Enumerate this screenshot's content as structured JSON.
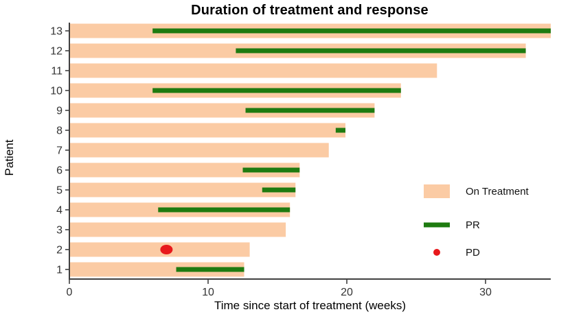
{
  "title": "Duration of treatment and response",
  "x_axis": {
    "label": "Time since start of treatment (weeks)",
    "ticks": [
      0,
      10,
      20,
      30
    ]
  },
  "y_axis": {
    "label": "Patient",
    "ticks": [
      1,
      2,
      3,
      4,
      5,
      6,
      7,
      8,
      9,
      10,
      11,
      12,
      13
    ]
  },
  "legend": {
    "position": "right-middle",
    "items": [
      {
        "key": "on_treatment",
        "label": "On Treatment",
        "marker": "bar"
      },
      {
        "key": "pr",
        "label": "PR",
        "marker": "line"
      },
      {
        "key": "pd",
        "label": "PD",
        "marker": "dot"
      }
    ]
  },
  "colors": {
    "on_treatment": "#FBCBA4",
    "pr": "#1E7B10",
    "pd": "#E8191C",
    "axis": "#404040",
    "tick_text": "#333333",
    "title": "#000000"
  },
  "chart_data": {
    "type": "bar",
    "variant": "swimmer-plot",
    "orientation": "horizontal",
    "title": "Duration of treatment and response",
    "xlabel": "Time since start of treatment (weeks)",
    "ylabel": "Patient",
    "xlim": [
      0,
      34.7
    ],
    "x_ticks": [
      0,
      10,
      20,
      30
    ],
    "grid": false,
    "patients": [
      {
        "id": 1,
        "on_treatment": [
          0,
          12.6
        ],
        "pr": [
          7.7,
          12.6
        ],
        "pd": null
      },
      {
        "id": 2,
        "on_treatment": [
          0,
          13.0
        ],
        "pr": null,
        "pd": 7.0
      },
      {
        "id": 3,
        "on_treatment": [
          0,
          15.6
        ],
        "pr": null,
        "pd": null
      },
      {
        "id": 4,
        "on_treatment": [
          0,
          15.9
        ],
        "pr": [
          6.4,
          15.9
        ],
        "pd": null
      },
      {
        "id": 5,
        "on_treatment": [
          0,
          16.3
        ],
        "pr": [
          13.9,
          16.3
        ],
        "pd": null
      },
      {
        "id": 6,
        "on_treatment": [
          0,
          16.6
        ],
        "pr": [
          12.5,
          16.6
        ],
        "pd": null
      },
      {
        "id": 7,
        "on_treatment": [
          0,
          18.7
        ],
        "pr": null,
        "pd": null
      },
      {
        "id": 8,
        "on_treatment": [
          0,
          19.9
        ],
        "pr": [
          19.2,
          19.9
        ],
        "pd": null
      },
      {
        "id": 9,
        "on_treatment": [
          0,
          22.0
        ],
        "pr": [
          12.7,
          22.0
        ],
        "pd": null
      },
      {
        "id": 10,
        "on_treatment": [
          0,
          23.9
        ],
        "pr": [
          6.0,
          23.9
        ],
        "pd": null
      },
      {
        "id": 11,
        "on_treatment": [
          0,
          26.5
        ],
        "pr": null,
        "pd": null
      },
      {
        "id": 12,
        "on_treatment": [
          0,
          32.9
        ],
        "pr": [
          12.0,
          32.9
        ],
        "pd": null
      },
      {
        "id": 13,
        "on_treatment": [
          0,
          34.7
        ],
        "pr": [
          6.0,
          34.7
        ],
        "pd": null
      }
    ]
  }
}
